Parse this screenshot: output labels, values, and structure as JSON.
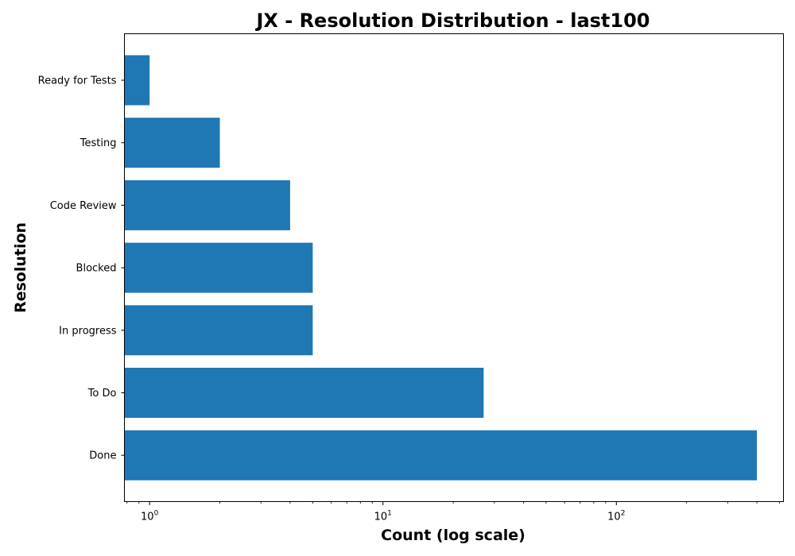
{
  "chart_data": {
    "type": "bar",
    "orientation": "horizontal",
    "title": "JX - Resolution Distribution - last100",
    "xlabel": "Count (log scale)",
    "ylabel": "Resolution",
    "x_scale": "log",
    "xlim": [
      0.78,
      520
    ],
    "x_ticks": [
      {
        "value": 1,
        "base": "10",
        "exp": "0"
      },
      {
        "value": 10,
        "base": "10",
        "exp": "1"
      },
      {
        "value": 100,
        "base": "10",
        "exp": "2"
      }
    ],
    "categories": [
      "Ready for Tests",
      "Testing",
      "Code Review",
      "Blocked",
      "In progress",
      "To Do",
      "Done"
    ],
    "values": [
      1,
      2,
      4,
      5,
      5,
      27,
      400
    ],
    "bar_color": "#1f77b4",
    "grid": false,
    "legend": "none"
  }
}
